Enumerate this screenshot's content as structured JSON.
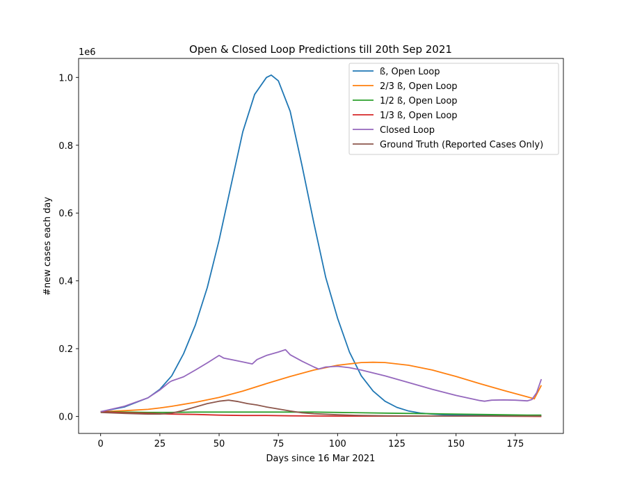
{
  "chart_data": {
    "type": "line",
    "title": "Open & Closed Loop Predictions till 20th Sep 2021",
    "xlabel": "Days since 16 Mar 2021",
    "ylabel": "#new cases each day",
    "y_offset_label": "1e6",
    "xlim": [
      -9.3,
      195.3
    ],
    "ylim": [
      -0.05,
      1.056
    ],
    "x_ticks": [
      0,
      25,
      50,
      75,
      100,
      125,
      150,
      175
    ],
    "x_tick_labels": [
      "0",
      "25",
      "50",
      "75",
      "100",
      "125",
      "150",
      "175"
    ],
    "y_ticks": [
      0.0,
      0.2,
      0.4,
      0.6,
      0.8,
      1.0
    ],
    "y_tick_labels": [
      "0.0",
      "0.2",
      "0.4",
      "0.6",
      "0.8",
      "1.0"
    ],
    "grid": false,
    "legend_position": "top-right",
    "series": [
      {
        "name": "ß, Open Loop",
        "color": "#1f77b4",
        "x": [
          0,
          10,
          20,
          25,
          30,
          35,
          40,
          45,
          50,
          55,
          60,
          65,
          70,
          72,
          75,
          80,
          85,
          90,
          95,
          100,
          105,
          110,
          115,
          120,
          125,
          130,
          135,
          140,
          145,
          150,
          160,
          170,
          180,
          186
        ],
        "y": [
          0.014,
          0.028,
          0.055,
          0.08,
          0.12,
          0.185,
          0.27,
          0.38,
          0.52,
          0.68,
          0.84,
          0.95,
          1.0,
          1.007,
          0.99,
          0.9,
          0.74,
          0.57,
          0.41,
          0.29,
          0.19,
          0.12,
          0.075,
          0.045,
          0.027,
          0.016,
          0.01,
          0.007,
          0.005,
          0.004,
          0.003,
          0.002,
          0.002,
          0.002
        ]
      },
      {
        "name": "2/3 ß, Open Loop",
        "color": "#ff7f0e",
        "x": [
          0,
          10,
          20,
          25,
          30,
          40,
          50,
          60,
          70,
          80,
          90,
          100,
          110,
          115,
          120,
          130,
          140,
          150,
          160,
          170,
          180,
          183,
          186
        ],
        "y": [
          0.014,
          0.017,
          0.021,
          0.025,
          0.03,
          0.042,
          0.056,
          0.075,
          0.097,
          0.118,
          0.137,
          0.151,
          0.159,
          0.16,
          0.159,
          0.151,
          0.137,
          0.118,
          0.097,
          0.077,
          0.058,
          0.052,
          0.092
        ]
      },
      {
        "name": "1/2 ß, Open Loop",
        "color": "#2ca02c",
        "x": [
          0,
          10,
          20,
          30,
          40,
          50,
          60,
          70,
          80,
          90,
          100,
          120,
          140,
          160,
          180,
          186
        ],
        "y": [
          0.014,
          0.013,
          0.012,
          0.012,
          0.013,
          0.013,
          0.013,
          0.013,
          0.013,
          0.013,
          0.012,
          0.01,
          0.008,
          0.006,
          0.004,
          0.004
        ]
      },
      {
        "name": "1/3 ß, Open Loop",
        "color": "#d62728",
        "x": [
          0,
          10,
          20,
          30,
          40,
          50,
          60,
          70,
          80,
          100,
          120,
          140,
          160,
          186
        ],
        "y": [
          0.014,
          0.011,
          0.009,
          0.007,
          0.006,
          0.004,
          0.003,
          0.003,
          0.002,
          0.001,
          0.001,
          0.001,
          0.001,
          0.0
        ]
      },
      {
        "name": "Closed Loop",
        "color": "#9467bd",
        "x": [
          0,
          10,
          20,
          25,
          29,
          30,
          35,
          40,
          45,
          50,
          52,
          55,
          60,
          64,
          66,
          70,
          75,
          78,
          80,
          85,
          90,
          92,
          95,
          100,
          105,
          110,
          120,
          130,
          140,
          150,
          160,
          162,
          165,
          170,
          175,
          180,
          182,
          184,
          186
        ],
        "y": [
          0.014,
          0.03,
          0.055,
          0.078,
          0.101,
          0.105,
          0.117,
          0.137,
          0.158,
          0.18,
          0.172,
          0.168,
          0.161,
          0.155,
          0.168,
          0.18,
          0.19,
          0.197,
          0.182,
          0.163,
          0.146,
          0.14,
          0.146,
          0.148,
          0.144,
          0.137,
          0.12,
          0.1,
          0.08,
          0.062,
          0.047,
          0.045,
          0.048,
          0.049,
          0.048,
          0.046,
          0.05,
          0.07,
          0.11
        ]
      },
      {
        "name": "Ground Truth (Reported Cases Only)",
        "color": "#8c564b",
        "x": [
          0,
          10,
          20,
          25,
          30,
          35,
          40,
          45,
          50,
          54,
          58,
          62,
          66,
          70,
          75,
          80,
          85,
          90,
          100,
          110,
          120,
          140,
          160,
          186
        ],
        "y": [
          0.012,
          0.009,
          0.007,
          0.007,
          0.01,
          0.018,
          0.028,
          0.038,
          0.045,
          0.048,
          0.044,
          0.038,
          0.034,
          0.028,
          0.022,
          0.016,
          0.011,
          0.008,
          0.005,
          0.003,
          0.002,
          0.001,
          0.001,
          0.001
        ]
      }
    ]
  }
}
